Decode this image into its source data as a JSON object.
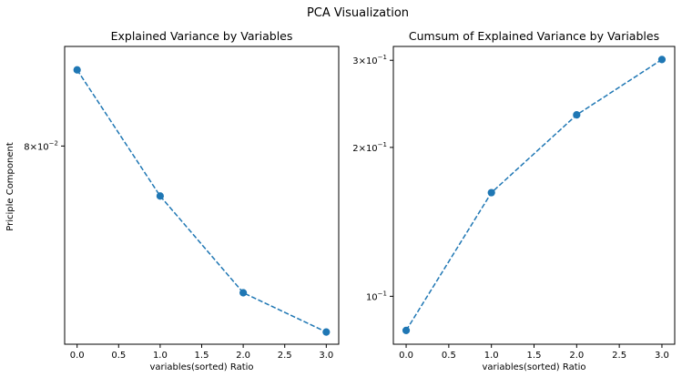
{
  "figure": {
    "suptitle": "PCA Visualization"
  },
  "chart_data": [
    {
      "type": "line",
      "title": "Explained Variance by Variables",
      "xlabel": "variables(sorted) Ratio",
      "ylabel": "Priciple Component",
      "yscale": "log",
      "x": [
        0,
        1,
        2,
        3
      ],
      "series": [
        {
          "values": [
            0.0853,
            0.0767,
            0.0707,
            0.0684
          ],
          "color": "#1f77b4",
          "marker": "circle",
          "linestyle": "dashed"
        }
      ],
      "xlim": [
        -0.15,
        3.15
      ],
      "ylim": [
        0.0677,
        0.087
      ],
      "xticks": [
        {
          "value": 0,
          "label": "0.0"
        },
        {
          "value": 0.5,
          "label": "0.5"
        },
        {
          "value": 1,
          "label": "1.0"
        },
        {
          "value": 1.5,
          "label": "1.5"
        },
        {
          "value": 2,
          "label": "2.0"
        },
        {
          "value": 2.5,
          "label": "2.5"
        },
        {
          "value": 3,
          "label": "3.0"
        }
      ],
      "yticks": [
        {
          "value": 0.08,
          "mantissa": "8",
          "exponent": "−2"
        }
      ],
      "grid": false,
      "legend": "none"
    },
    {
      "type": "line",
      "title": "Cumsum of Explained Variance by Variables",
      "xlabel": "variables(sorted) Ratio",
      "ylabel": "",
      "yscale": "log",
      "x": [
        0,
        1,
        2,
        3
      ],
      "series": [
        {
          "values": [
            0.0853,
            0.162,
            0.2327,
            0.3011
          ],
          "color": "#1f77b4",
          "marker": "circle",
          "linestyle": "dashed"
        }
      ],
      "xlim": [
        -0.15,
        3.15
      ],
      "ylim": [
        0.08,
        0.32
      ],
      "xticks": [
        {
          "value": 0,
          "label": "0.0"
        },
        {
          "value": 0.5,
          "label": "0.5"
        },
        {
          "value": 1,
          "label": "1.0"
        },
        {
          "value": 1.5,
          "label": "1.5"
        },
        {
          "value": 2,
          "label": "2.0"
        },
        {
          "value": 2.5,
          "label": "2.5"
        },
        {
          "value": 3,
          "label": "3.0"
        }
      ],
      "yticks": [
        {
          "value": 0.1,
          "mantissa": "",
          "exponent": "−1"
        },
        {
          "value": 0.2,
          "mantissa": "2",
          "exponent": "−1"
        },
        {
          "value": 0.3,
          "mantissa": "3",
          "exponent": "−1"
        }
      ],
      "grid": false,
      "legend": "none"
    }
  ]
}
